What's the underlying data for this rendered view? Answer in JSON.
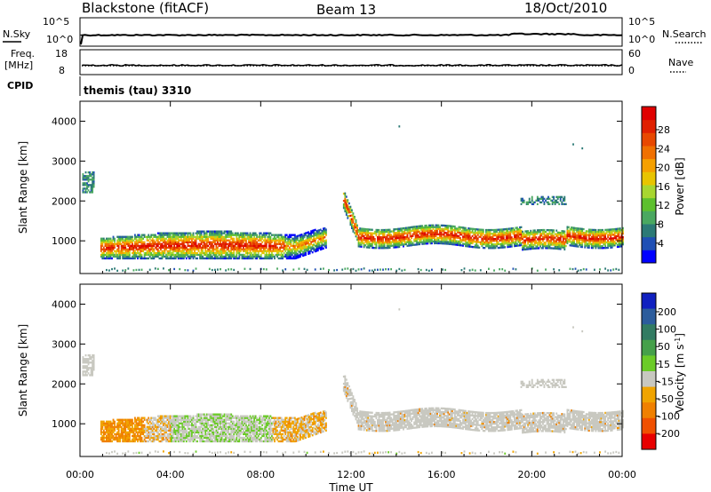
{
  "header": {
    "title": "Blackstone (fitACF)",
    "beam": "Beam 13",
    "date": "18/Oct/2010"
  },
  "top_panels": {
    "nsky_label": "N.Sky",
    "nsearch_label": "N.Search",
    "noise_ticks_left": [
      "10^5",
      "10^0"
    ],
    "noise_ticks_right": [
      "10^5",
      "10^0"
    ],
    "freq_label_1": "Freq.",
    "freq_label_2": "[MHz]",
    "freq_ticks": [
      "18",
      "8"
    ],
    "nave_label": "Nave",
    "nave_ticks": [
      "60",
      "0"
    ],
    "cpid_label": "CPID",
    "cpid_value": "themis (tau) 3310"
  },
  "colorbars": {
    "power": {
      "label": "Power [dB]",
      "ticks": [
        "28",
        "24",
        "20",
        "16",
        "12",
        "8",
        "4"
      ],
      "colors": [
        "#0000ff",
        "#1f4fb4",
        "#2c7a76",
        "#4aa860",
        "#5dc02e",
        "#a8d630",
        "#e8c400",
        "#f5a000",
        "#f07000",
        "#e84800",
        "#e02000",
        "#e00000"
      ]
    },
    "velocity": {
      "label": "Velocity [m s",
      "label_sup": "-1",
      "label_end": "]",
      "ticks": [
        "200",
        "100",
        "50",
        "15",
        "-15",
        "-50",
        "-100",
        "-200"
      ],
      "colors": [
        "#1020c0",
        "#2c5c9c",
        "#327b62",
        "#45a04a",
        "#6bcb28",
        "#c8c8c0",
        "#f0a400",
        "#f08000",
        "#f05000",
        "#e80000"
      ]
    }
  },
  "chart_data": [
    {
      "type": "heatmap",
      "title": "Power",
      "ylabel": "Slant Range [km]",
      "ylim": [
        180,
        4500
      ],
      "yticks": [
        "4000",
        "3000",
        "2000",
        "1000"
      ],
      "xlim": [
        0,
        24
      ],
      "xticks": [
        "00:00",
        "04:00",
        "08:00",
        "12:00",
        "16:00",
        "20:00",
        "00:00"
      ],
      "xlabel": "Time UT",
      "colorbar_range": [
        0,
        30
      ],
      "echo_bands": [
        {
          "t_start": 1.0,
          "t_end": 10.8,
          "range_center_km": 850,
          "peak_db": 28
        },
        {
          "t_start": 11.7,
          "t_end": 24.0,
          "range_center_km": 1050,
          "peak_db": 28
        }
      ]
    },
    {
      "type": "heatmap",
      "title": "Velocity",
      "ylabel": "Slant Range [km]",
      "ylim": [
        180,
        4500
      ],
      "yticks": [
        "4000",
        "3000",
        "2000",
        "1000"
      ],
      "xlim": [
        0,
        24
      ],
      "xticks": [
        "00:00",
        "04:00",
        "08:00",
        "12:00",
        "16:00",
        "20:00",
        "00:00"
      ],
      "xlabel": "Time UT",
      "colorbar_range": [
        -250,
        250
      ]
    }
  ]
}
